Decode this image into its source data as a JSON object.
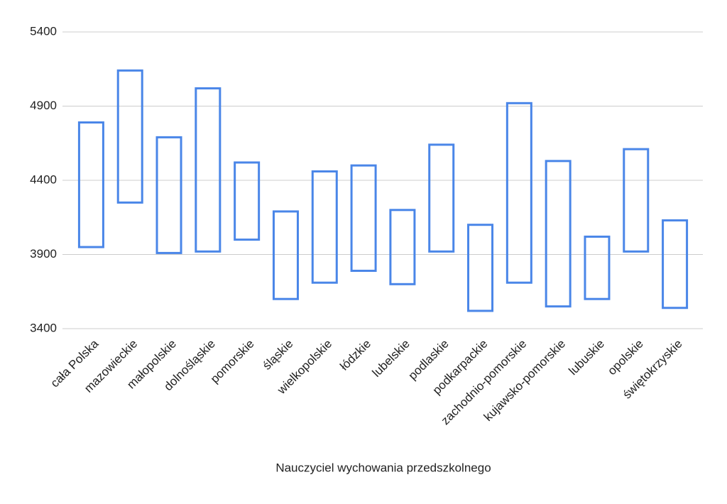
{
  "chart_data": {
    "type": "floating-bar",
    "x_label": "Nauczyciel wychowania przedszkolnego",
    "categories": [
      "cała Polska",
      "mazowieckie",
      "małopolskie",
      "dolnośląskie",
      "pomorskie",
      "śląskie",
      "wielkopolskie",
      "łódzkie",
      "lubelskie",
      "podlaskie",
      "podkarpackie",
      "zachodnio-pomorskie",
      "kujawsko-pomorskie",
      "lubuskie",
      "opolskie",
      "świętokrzyskie"
    ],
    "low": [
      3950,
      4250,
      3910,
      3920,
      4000,
      3600,
      3710,
      3790,
      3700,
      3920,
      3520,
      3710,
      3550,
      3600,
      3920,
      3540
    ],
    "high": [
      4790,
      5140,
      4690,
      5020,
      4520,
      4190,
      4460,
      4500,
      4200,
      4640,
      4100,
      4920,
      4530,
      4020,
      4610,
      4130
    ],
    "color": "#4a86e8",
    "ylim": [
      3400,
      5400
    ],
    "yticks": [
      3400,
      3900,
      4400,
      4900,
      5400
    ],
    "grid": true
  }
}
